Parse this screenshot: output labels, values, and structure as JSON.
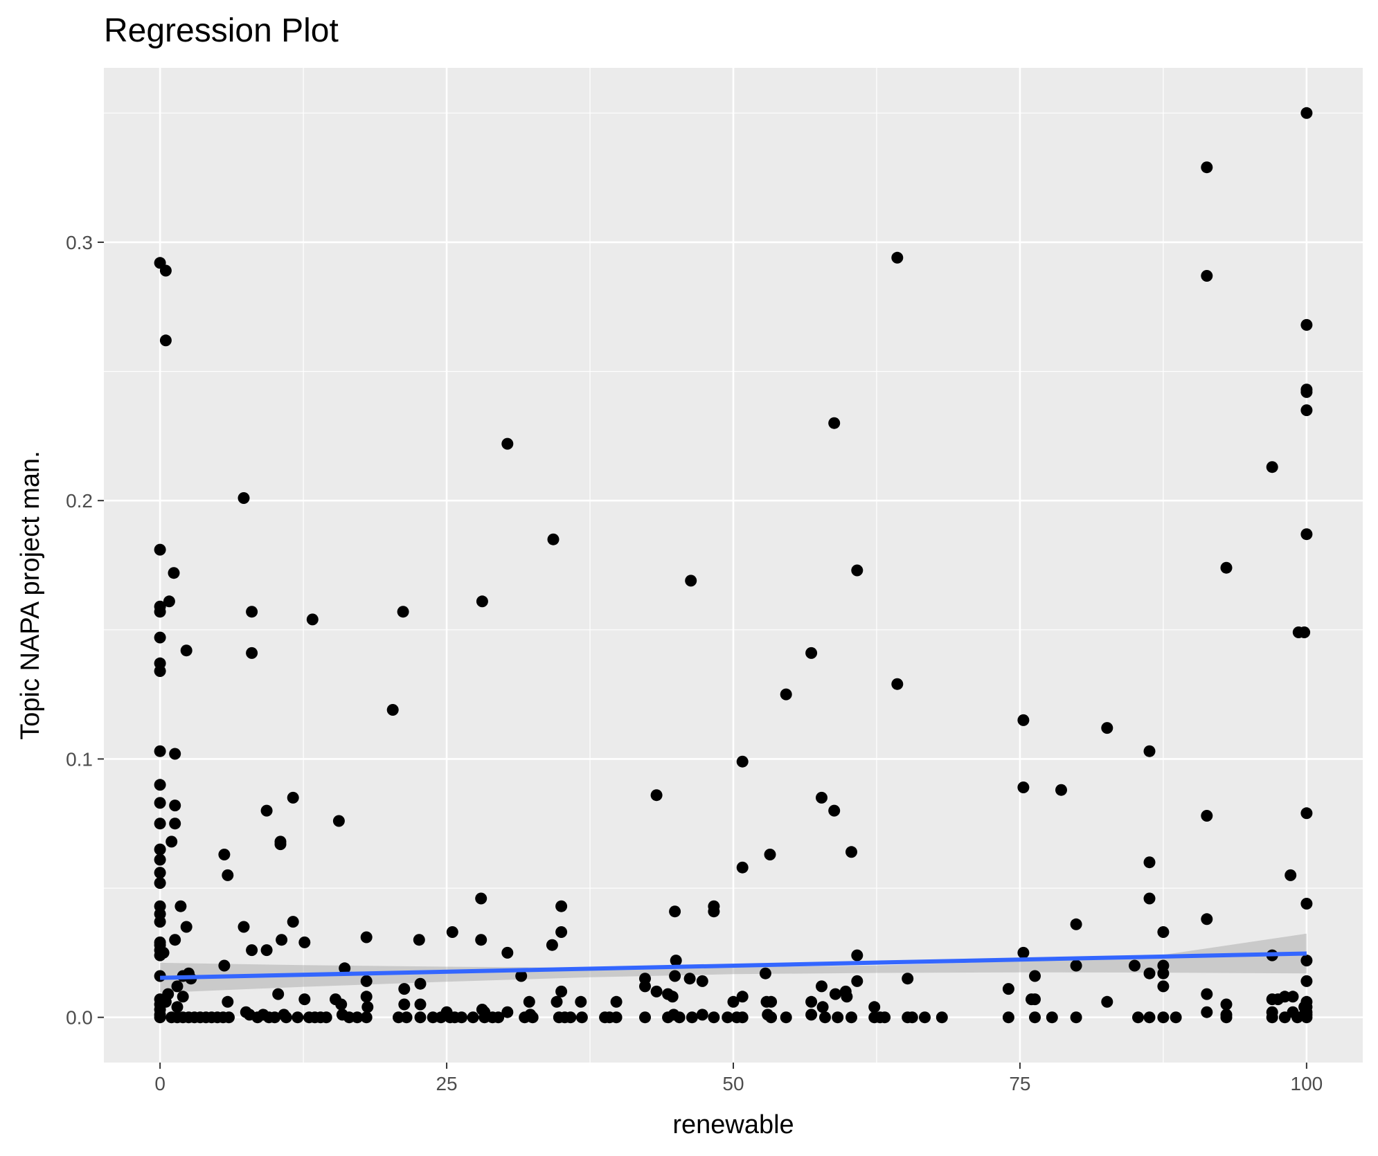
{
  "chart_data": {
    "type": "scatter",
    "title": "Regression Plot",
    "xlabel": "renewable",
    "ylabel": "Topic NAPA project man.",
    "xlim": [
      -4.9,
      104.9
    ],
    "ylim": [
      -0.0175,
      0.3675
    ],
    "x_ticks": [
      0,
      25,
      50,
      75,
      100
    ],
    "x_tick_labels": [
      "0",
      "25",
      "50",
      "75",
      "100"
    ],
    "y_ticks": [
      0.0,
      0.1,
      0.2,
      0.3
    ],
    "y_tick_labels": [
      "0.0",
      "0.1",
      "0.2",
      "0.3"
    ],
    "x_minor": [
      12.5,
      37.5,
      62.5,
      87.5
    ],
    "y_minor": [
      0.05,
      0.15,
      0.25,
      0.35
    ],
    "grid": true,
    "colors": {
      "panel": "#ebebeb",
      "grid": "#ffffff",
      "points": "#000000",
      "line": "#3366ff",
      "ribbon": "#999999"
    },
    "points": [
      [
        0,
        0.292
      ],
      [
        0.5,
        0.289
      ],
      [
        0.5,
        0.262
      ],
      [
        0,
        0.181
      ],
      [
        0,
        0.159
      ],
      [
        0,
        0.157
      ],
      [
        0,
        0.147
      ],
      [
        0,
        0.137
      ],
      [
        0,
        0.134
      ],
      [
        0,
        0.103
      ],
      [
        0,
        0.09
      ],
      [
        0,
        0.083
      ],
      [
        0,
        0.075
      ],
      [
        0,
        0.065
      ],
      [
        0,
        0.061
      ],
      [
        0,
        0.056
      ],
      [
        0,
        0.052
      ],
      [
        0,
        0.043
      ],
      [
        0,
        0.04
      ],
      [
        0,
        0.037
      ],
      [
        0,
        0.029
      ],
      [
        0,
        0.028
      ],
      [
        0,
        0.026
      ],
      [
        0,
        0.024
      ],
      [
        0,
        0.016
      ],
      [
        0,
        0.007
      ],
      [
        0,
        0.005
      ],
      [
        0,
        0.003
      ],
      [
        0,
        0.001
      ],
      [
        0,
        0
      ],
      [
        0.3,
        0.025
      ],
      [
        0.5,
        0.006
      ],
      [
        0.7,
        0.009
      ],
      [
        0.8,
        0.161
      ],
      [
        1.0,
        0.068
      ],
      [
        1.2,
        0.172
      ],
      [
        1.3,
        0.102
      ],
      [
        1.3,
        0.082
      ],
      [
        1.3,
        0.075
      ],
      [
        1.3,
        0.03
      ],
      [
        1.5,
        0.012
      ],
      [
        1.5,
        0.004
      ],
      [
        1.8,
        0.043
      ],
      [
        2.0,
        0.016
      ],
      [
        2.0,
        0.008
      ],
      [
        2.3,
        0.142
      ],
      [
        2.3,
        0.035
      ],
      [
        2.5,
        0.017
      ],
      [
        2.7,
        0.015
      ],
      [
        1.0,
        0
      ],
      [
        1.5,
        0
      ],
      [
        2,
        0
      ],
      [
        2.5,
        0
      ],
      [
        3.0,
        0
      ],
      [
        3.5,
        0
      ],
      [
        4.0,
        0
      ],
      [
        4.5,
        0
      ],
      [
        5.0,
        0
      ],
      [
        5.5,
        0
      ],
      [
        6.0,
        0
      ],
      [
        5.6,
        0.063
      ],
      [
        5.6,
        0.02
      ],
      [
        5.9,
        0.055
      ],
      [
        5.9,
        0.006
      ],
      [
        7.3,
        0.201
      ],
      [
        7.3,
        0.035
      ],
      [
        7.5,
        0.002
      ],
      [
        7.8,
        0.001
      ],
      [
        8.0,
        0.157
      ],
      [
        8.0,
        0.141
      ],
      [
        8.0,
        0.026
      ],
      [
        8.5,
        0
      ],
      [
        9.0,
        0.001
      ],
      [
        9.3,
        0.08
      ],
      [
        9.3,
        0.026
      ],
      [
        9.5,
        0
      ],
      [
        10,
        0
      ],
      [
        10.3,
        0.009
      ],
      [
        10.5,
        0.068
      ],
      [
        10.5,
        0.067
      ],
      [
        10.6,
        0.03
      ],
      [
        10.8,
        0.001
      ],
      [
        11,
        0
      ],
      [
        11.6,
        0.085
      ],
      [
        11.6,
        0.037
      ],
      [
        12,
        0
      ],
      [
        12.6,
        0.029
      ],
      [
        12.6,
        0.007
      ],
      [
        13,
        0
      ],
      [
        13.3,
        0.154
      ],
      [
        13.5,
        0
      ],
      [
        14,
        0
      ],
      [
        14.5,
        0
      ],
      [
        15.3,
        0.007
      ],
      [
        15.6,
        0.076
      ],
      [
        15.8,
        0.005
      ],
      [
        15.9,
        0.001
      ],
      [
        16.1,
        0.019
      ],
      [
        16.5,
        0
      ],
      [
        17.2,
        0
      ],
      [
        18.0,
        0.031
      ],
      [
        18.0,
        0.014
      ],
      [
        18.0,
        0.008
      ],
      [
        18.1,
        0.004
      ],
      [
        18.0,
        0
      ],
      [
        20.3,
        0.119
      ],
      [
        20.8,
        0
      ],
      [
        21.2,
        0.157
      ],
      [
        21.3,
        0.011
      ],
      [
        21.3,
        0.005
      ],
      [
        21.5,
        0
      ],
      [
        22.6,
        0.03
      ],
      [
        22.7,
        0.013
      ],
      [
        22.7,
        0.005
      ],
      [
        22.7,
        0
      ],
      [
        23.8,
        0
      ],
      [
        24.5,
        0
      ],
      [
        25.0,
        0.002
      ],
      [
        25.3,
        0
      ],
      [
        25.5,
        0.033
      ],
      [
        25.7,
        0
      ],
      [
        26.3,
        0
      ],
      [
        27.3,
        0
      ],
      [
        28.0,
        0.046
      ],
      [
        28.0,
        0.03
      ],
      [
        28.1,
        0.161
      ],
      [
        28.1,
        0.003
      ],
      [
        28.3,
        0.002
      ],
      [
        28.3,
        0
      ],
      [
        29,
        0
      ],
      [
        29.5,
        0
      ],
      [
        30.3,
        0.222
      ],
      [
        30.3,
        0.025
      ],
      [
        30.3,
        0.002
      ],
      [
        31.5,
        0.016
      ],
      [
        31.8,
        0
      ],
      [
        32.2,
        0.006
      ],
      [
        32.3,
        0.001
      ],
      [
        32.5,
        0
      ],
      [
        34.2,
        0.028
      ],
      [
        34.3,
        0.185
      ],
      [
        34.6,
        0.006
      ],
      [
        34.8,
        0
      ],
      [
        35.0,
        0.043
      ],
      [
        35.0,
        0.033
      ],
      [
        35.0,
        0.01
      ],
      [
        35.3,
        0
      ],
      [
        35.8,
        0
      ],
      [
        36.7,
        0.006
      ],
      [
        36.8,
        0
      ],
      [
        38.8,
        0
      ],
      [
        39.2,
        0
      ],
      [
        39.8,
        0.006
      ],
      [
        39.8,
        0
      ],
      [
        42.3,
        0.015
      ],
      [
        42.3,
        0.012
      ],
      [
        42.3,
        0
      ],
      [
        43.3,
        0.086
      ],
      [
        43.3,
        0.01
      ],
      [
        44.3,
        0.009
      ],
      [
        44.3,
        0
      ],
      [
        44.7,
        0.008
      ],
      [
        44.8,
        0.001
      ],
      [
        44.9,
        0.041
      ],
      [
        44.9,
        0.016
      ],
      [
        45.0,
        0.022
      ],
      [
        45.3,
        0
      ],
      [
        46.2,
        0.015
      ],
      [
        46.3,
        0.169
      ],
      [
        46.4,
        0
      ],
      [
        47.3,
        0.014
      ],
      [
        47.3,
        0.001
      ],
      [
        48.3,
        0.043
      ],
      [
        48.3,
        0.041
      ],
      [
        48.3,
        0
      ],
      [
        49.5,
        0
      ],
      [
        50.0,
        0.006
      ],
      [
        50.3,
        0
      ],
      [
        50.8,
        0.099
      ],
      [
        50.8,
        0.058
      ],
      [
        50.8,
        0.008
      ],
      [
        50.8,
        0
      ],
      [
        52.8,
        0.017
      ],
      [
        52.9,
        0.006
      ],
      [
        53.0,
        0.001
      ],
      [
        53.2,
        0.063
      ],
      [
        53.3,
        0.006
      ],
      [
        53.3,
        0
      ],
      [
        54.6,
        0.125
      ],
      [
        54.6,
        0
      ],
      [
        56.8,
        0.141
      ],
      [
        56.8,
        0.006
      ],
      [
        56.8,
        0.001
      ],
      [
        57.7,
        0.085
      ],
      [
        57.7,
        0.012
      ],
      [
        57.8,
        0.004
      ],
      [
        58.0,
        0
      ],
      [
        58.8,
        0.23
      ],
      [
        58.8,
        0.08
      ],
      [
        58.9,
        0.009
      ],
      [
        59.1,
        0
      ],
      [
        59.8,
        0.01
      ],
      [
        59.9,
        0.008
      ],
      [
        60.3,
        0.064
      ],
      [
        60.3,
        0
      ],
      [
        60.8,
        0.173
      ],
      [
        60.8,
        0.024
      ],
      [
        60.8,
        0.014
      ],
      [
        62.3,
        0.004
      ],
      [
        62.3,
        0
      ],
      [
        62.8,
        0
      ],
      [
        63.2,
        0
      ],
      [
        64.3,
        0.294
      ],
      [
        64.3,
        0.129
      ],
      [
        65.2,
        0.015
      ],
      [
        65.2,
        0
      ],
      [
        65.6,
        0
      ],
      [
        66.7,
        0
      ],
      [
        68.2,
        0
      ],
      [
        74.0,
        0.011
      ],
      [
        74.0,
        0
      ],
      [
        75.3,
        0.115
      ],
      [
        75.3,
        0.089
      ],
      [
        75.3,
        0.025
      ],
      [
        76.0,
        0.007
      ],
      [
        76.3,
        0.016
      ],
      [
        76.3,
        0.007
      ],
      [
        76.3,
        0
      ],
      [
        77.8,
        0
      ],
      [
        78.6,
        0.088
      ],
      [
        79.9,
        0.036
      ],
      [
        79.9,
        0.02
      ],
      [
        79.9,
        0
      ],
      [
        82.6,
        0.112
      ],
      [
        82.6,
        0.006
      ],
      [
        85.0,
        0.02
      ],
      [
        85.3,
        0
      ],
      [
        86.3,
        0.103
      ],
      [
        86.3,
        0.06
      ],
      [
        86.3,
        0.046
      ],
      [
        86.3,
        0.017
      ],
      [
        86.3,
        0
      ],
      [
        87.5,
        0.033
      ],
      [
        87.5,
        0.02
      ],
      [
        87.5,
        0.017
      ],
      [
        87.5,
        0.012
      ],
      [
        87.5,
        0
      ],
      [
        88.6,
        0
      ],
      [
        91.3,
        0.329
      ],
      [
        91.3,
        0.287
      ],
      [
        91.3,
        0.078
      ],
      [
        91.3,
        0.038
      ],
      [
        91.3,
        0.009
      ],
      [
        91.3,
        0.002
      ],
      [
        93.0,
        0.174
      ],
      [
        93.0,
        0.005
      ],
      [
        93.0,
        0.001
      ],
      [
        93.0,
        0
      ],
      [
        97.0,
        0.213
      ],
      [
        97.0,
        0.024
      ],
      [
        97.0,
        0.007
      ],
      [
        97.0,
        0.002
      ],
      [
        97.0,
        0
      ],
      [
        97.5,
        0.007
      ],
      [
        98.1,
        0.008
      ],
      [
        98.1,
        0
      ],
      [
        98.6,
        0.055
      ],
      [
        98.8,
        0.008
      ],
      [
        98.8,
        0.002
      ],
      [
        99.2,
        0
      ],
      [
        99.3,
        0.149
      ],
      [
        99.8,
        0.149
      ],
      [
        99.8,
        0.004
      ],
      [
        99.8,
        0.001
      ],
      [
        100,
        0.35
      ],
      [
        100,
        0.268
      ],
      [
        100,
        0.243
      ],
      [
        100,
        0.242
      ],
      [
        100,
        0.235
      ],
      [
        100,
        0.187
      ],
      [
        100,
        0.079
      ],
      [
        100,
        0.044
      ],
      [
        100,
        0.022
      ],
      [
        100,
        0.014
      ],
      [
        100,
        0.006
      ],
      [
        100,
        0.004
      ],
      [
        100,
        0.002
      ],
      [
        100,
        0.001
      ],
      [
        100,
        0
      ],
      [
        99.9,
        0.001
      ]
    ],
    "regression": {
      "x": [
        0,
        100
      ],
      "y": [
        0.0153,
        0.0247
      ]
    },
    "confidence_band": {
      "x": [
        0,
        12.5,
        25,
        37.5,
        50,
        62.5,
        75,
        87.5,
        100
      ],
      "lower": [
        0.0095,
        0.0118,
        0.0138,
        0.0155,
        0.0167,
        0.0172,
        0.0174,
        0.0173,
        0.017
      ],
      "upper": [
        0.0211,
        0.0202,
        0.0196,
        0.0192,
        0.0193,
        0.0201,
        0.0217,
        0.0242,
        0.0324
      ]
    }
  }
}
